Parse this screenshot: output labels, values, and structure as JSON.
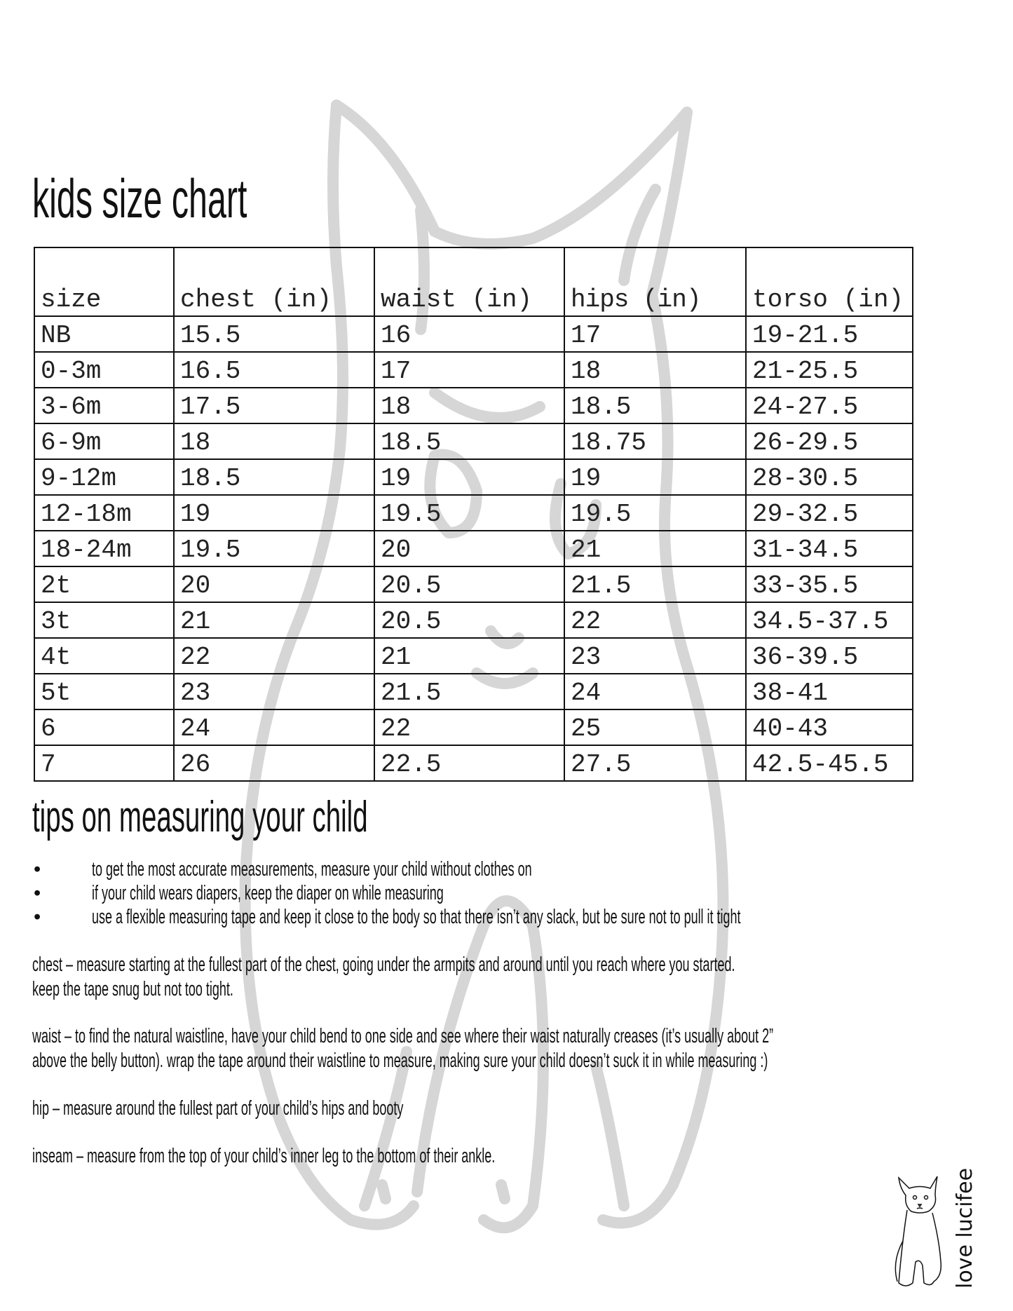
{
  "title": "kids size chart",
  "table": {
    "headers": [
      "size",
      "chest (in)",
      "waist (in)",
      "hips (in)",
      "torso (in)"
    ],
    "rows": [
      [
        "NB",
        "15.5",
        "16",
        "17",
        "19-21.5"
      ],
      [
        "0-3m",
        "16.5",
        "17",
        "18",
        "21-25.5"
      ],
      [
        "3-6m",
        "17.5",
        "18",
        "18.5",
        "24-27.5"
      ],
      [
        "6-9m",
        "18",
        "18.5",
        "18.75",
        "26-29.5"
      ],
      [
        "9-12m",
        "18.5",
        "19",
        "19",
        "28-30.5"
      ],
      [
        "12-18m",
        "19",
        "19.5",
        "19.5",
        "29-32.5"
      ],
      [
        "18-24m",
        "19.5",
        "20",
        "21",
        "31-34.5"
      ],
      [
        "2t",
        "20",
        "20.5",
        "21.5",
        "33-35.5"
      ],
      [
        "3t",
        "21",
        "20.5",
        "22",
        "34.5-37.5"
      ],
      [
        "4t",
        "22",
        "21",
        "23",
        "36-39.5"
      ],
      [
        "5t",
        "23",
        "21.5",
        "24",
        "38-41"
      ],
      [
        "6",
        "24",
        "22",
        "25",
        "40-43"
      ],
      [
        "7",
        "26",
        "22.5",
        "27.5",
        "42.5-45.5"
      ]
    ]
  },
  "tips": {
    "title": "tips on measuring your child",
    "bullet_symbol": "•",
    "bullets": [
      "to get the most accurate measurements, measure your child without clothes on",
      "if your child wears diapers, keep the diaper on while measuring",
      "use a flexible measuring tape and keep it close to the body so that there isn’t any slack, but be sure not to pull it tight"
    ],
    "chest": [
      "chest – measure starting at the fullest part of the chest, going under the armpits and around until you reach where you started.",
      "keep the tape snug but not too tight."
    ],
    "waist": [
      "waist – to find the natural waistline, have your child bend to one side and see where their waist naturally creases (it’s usually about 2”",
      "above the belly button). wrap the tape around their waistline to measure, making sure your child doesn’t suck it in while measuring :)"
    ],
    "hip": "hip – measure around the fullest part of your child’s hips and booty",
    "inseam": "inseam – measure from the top of your child’s inner leg to the bottom of their ankle."
  },
  "logo": {
    "text": "love lucifee"
  },
  "colors": {
    "watermark": "#d6d6d6",
    "text": "#111111"
  }
}
